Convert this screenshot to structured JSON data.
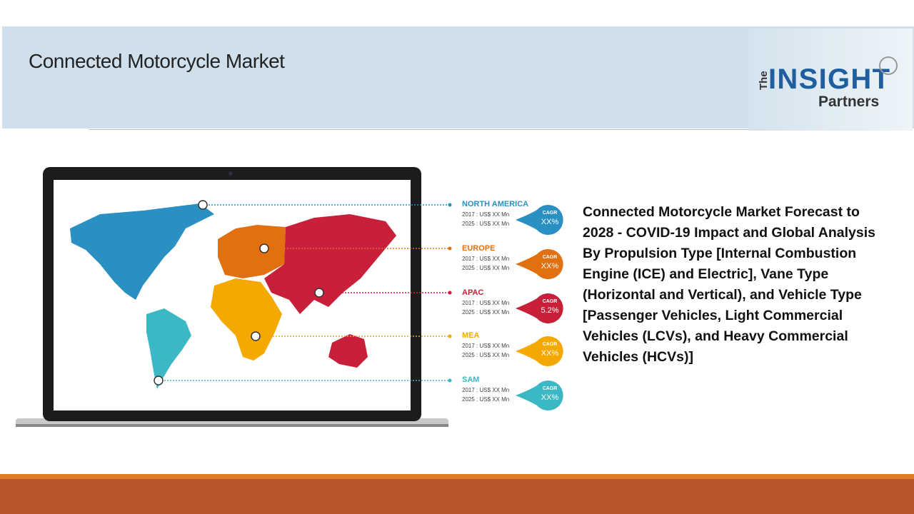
{
  "header": {
    "title": "Connected Motorcycle Market",
    "logo": {
      "the": "The",
      "insight": "INSIGHT",
      "partners": "Partners"
    }
  },
  "regions": [
    {
      "name": "NORTH AMERICA",
      "line1": "2017 : US$ XX Mn",
      "line2": "2025 : US$ XX Mn",
      "cagr_label": "CAGR",
      "cagr": "XX%",
      "color": "#2a8fc1"
    },
    {
      "name": "EUROPE",
      "line1": "2017 : US$ XX Mn",
      "line2": "2025 : US$ XX Mn",
      "cagr_label": "CAGR",
      "cagr": "XX%",
      "color": "#e07010"
    },
    {
      "name": "APAC",
      "line1": "2017 : US$ XX Mn",
      "line2": "2025 : US$ XX Mn",
      "cagr_label": "CAGR",
      "cagr": "5.2%",
      "color": "#c8203a"
    },
    {
      "name": "MEA",
      "line1": "2017 : US$ XX Mn",
      "line2": "2025 : US$ XX Mn",
      "cagr_label": "CAGR",
      "cagr": "XX%",
      "color": "#f5a800"
    },
    {
      "name": "SAM",
      "line1": "2017 : US$ XX Mn",
      "line2": "2025 : US$ XX Mn",
      "cagr_label": "CAGR",
      "cagr": "XX%",
      "color": "#3bb8c4"
    }
  ],
  "description": "Connected Motorcycle Market Forecast to 2028 - COVID-19 Impact and Global Analysis By Propulsion Type [Internal Combustion Engine (ICE) and Electric], Vane Type (Horizontal and Vertical), and Vehicle Type [Passenger Vehicles, Light Commercial Vehicles (LCVs), and Heavy Commercial Vehicles (HCVs)]"
}
